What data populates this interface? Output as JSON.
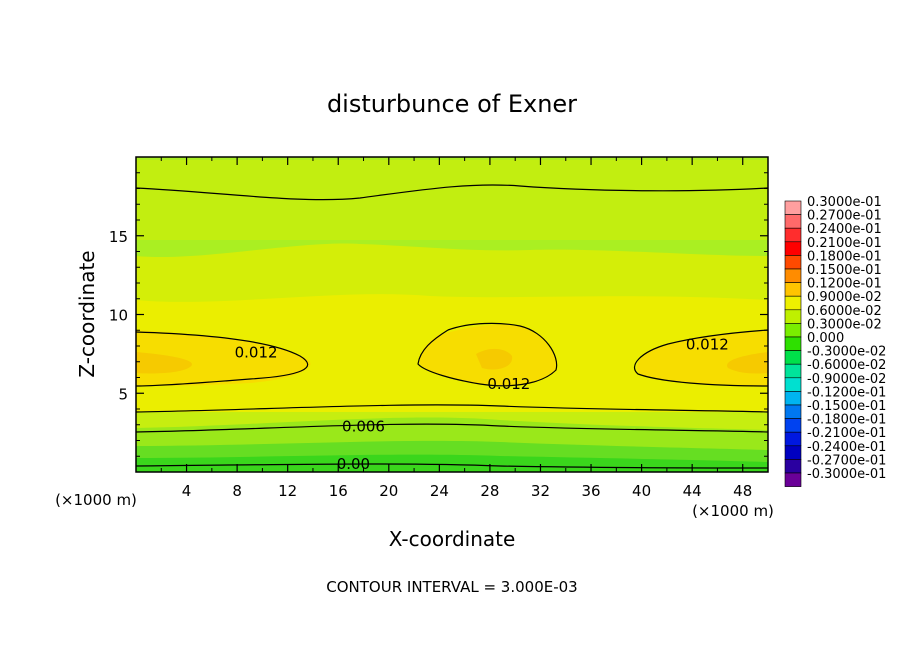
{
  "chart_data": {
    "type": "heatmap",
    "title": "disturbunce of Exner",
    "xlabel": "X-coordinate",
    "ylabel": "Z-coordinate",
    "xlim": [
      0,
      50
    ],
    "ylim": [
      0,
      20
    ],
    "x_unit_left": "(×1000 m)",
    "x_unit_right": "(×1000 m)",
    "x_ticks": [
      "4",
      "8",
      "12",
      "16",
      "20",
      "24",
      "28",
      "32",
      "36",
      "40",
      "44",
      "48"
    ],
    "y_ticks": [
      "5",
      "10",
      "15"
    ],
    "footer": "CONTOUR INTERVAL = 3.000E-03",
    "contour_interval": 0.003,
    "contour_labels": [
      {
        "text": "0.012",
        "x": 9.5,
        "z": 7.6
      },
      {
        "text": "0.012",
        "x": 29.5,
        "z": 5.6
      },
      {
        "text": "0.012",
        "x": 45.2,
        "z": 8.1
      },
      {
        "text": "0.006",
        "x": 18.0,
        "z": 2.9
      },
      {
        "text": "0.00",
        "x": 17.2,
        "z": 0.5
      }
    ],
    "colorbar": {
      "labels": [
        "0.3000e-01",
        "0.2700e-01",
        "0.2400e-01",
        "0.2100e-01",
        "0.1800e-01",
        "0.1500e-01",
        "0.1200e-01",
        "0.9000e-02",
        "0.6000e-02",
        "0.3000e-02",
        "0.000",
        "-0.3000e-02",
        "-0.6000e-02",
        "-0.9000e-02",
        "-0.1200e-01",
        "-0.1500e-01",
        "-0.1800e-01",
        "-0.2100e-01",
        "-0.2400e-01",
        "-0.2700e-01",
        "-0.3000e-01"
      ],
      "colors": [
        "#ff9f9f",
        "#ff6a6a",
        "#ff2d2d",
        "#ff0000",
        "#ff4a00",
        "#ff8c00",
        "#ffc400",
        "#eef000",
        "#bff000",
        "#7aee00",
        "#2ee000",
        "#00e04a",
        "#00e49a",
        "#00e0d0",
        "#00b4f0",
        "#0078f0",
        "#0042f0",
        "#0018e0",
        "#0000c0",
        "#2a00a0",
        "#6a0098"
      ]
    }
  }
}
